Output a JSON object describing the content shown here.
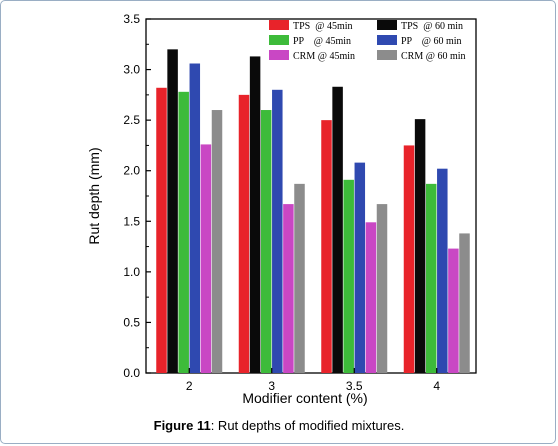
{
  "caption": {
    "label": "Figure 11",
    "text": ": Rut depths of modified mixtures."
  },
  "chart_data": {
    "type": "bar",
    "xlabel": "Modifier content (%)",
    "ylabel": "Rut depth (mm)",
    "ylim": [
      0,
      3.5
    ],
    "yticks": [
      "0.0",
      "0.5",
      "1.0",
      "1.5",
      "2.0",
      "2.5",
      "3.0",
      "3.5"
    ],
    "categories": [
      "2",
      "3",
      "3.5",
      "4"
    ],
    "legend_placement": "top-right",
    "series": [
      {
        "name": "TPS  @ 45min",
        "color": "#e8232a",
        "values": [
          2.82,
          2.75,
          2.5,
          2.25
        ]
      },
      {
        "name": "TPS  @ 60 min",
        "color": "#0a0a0a",
        "values": [
          3.2,
          3.13,
          2.83,
          2.51
        ]
      },
      {
        "name": "PP    @ 45min",
        "color": "#3dbb3a",
        "values": [
          2.78,
          2.6,
          1.91,
          1.87
        ]
      },
      {
        "name": "PP    @ 60 min",
        "color": "#2f49b0",
        "values": [
          3.06,
          2.8,
          2.08,
          2.02
        ]
      },
      {
        "name": "CRM @ 45min",
        "color": "#c947c4",
        "values": [
          2.26,
          1.67,
          1.49,
          1.23
        ]
      },
      {
        "name": "CRM @ 60 min",
        "color": "#8c8c8c",
        "values": [
          2.6,
          1.87,
          1.67,
          1.38
        ]
      }
    ]
  }
}
